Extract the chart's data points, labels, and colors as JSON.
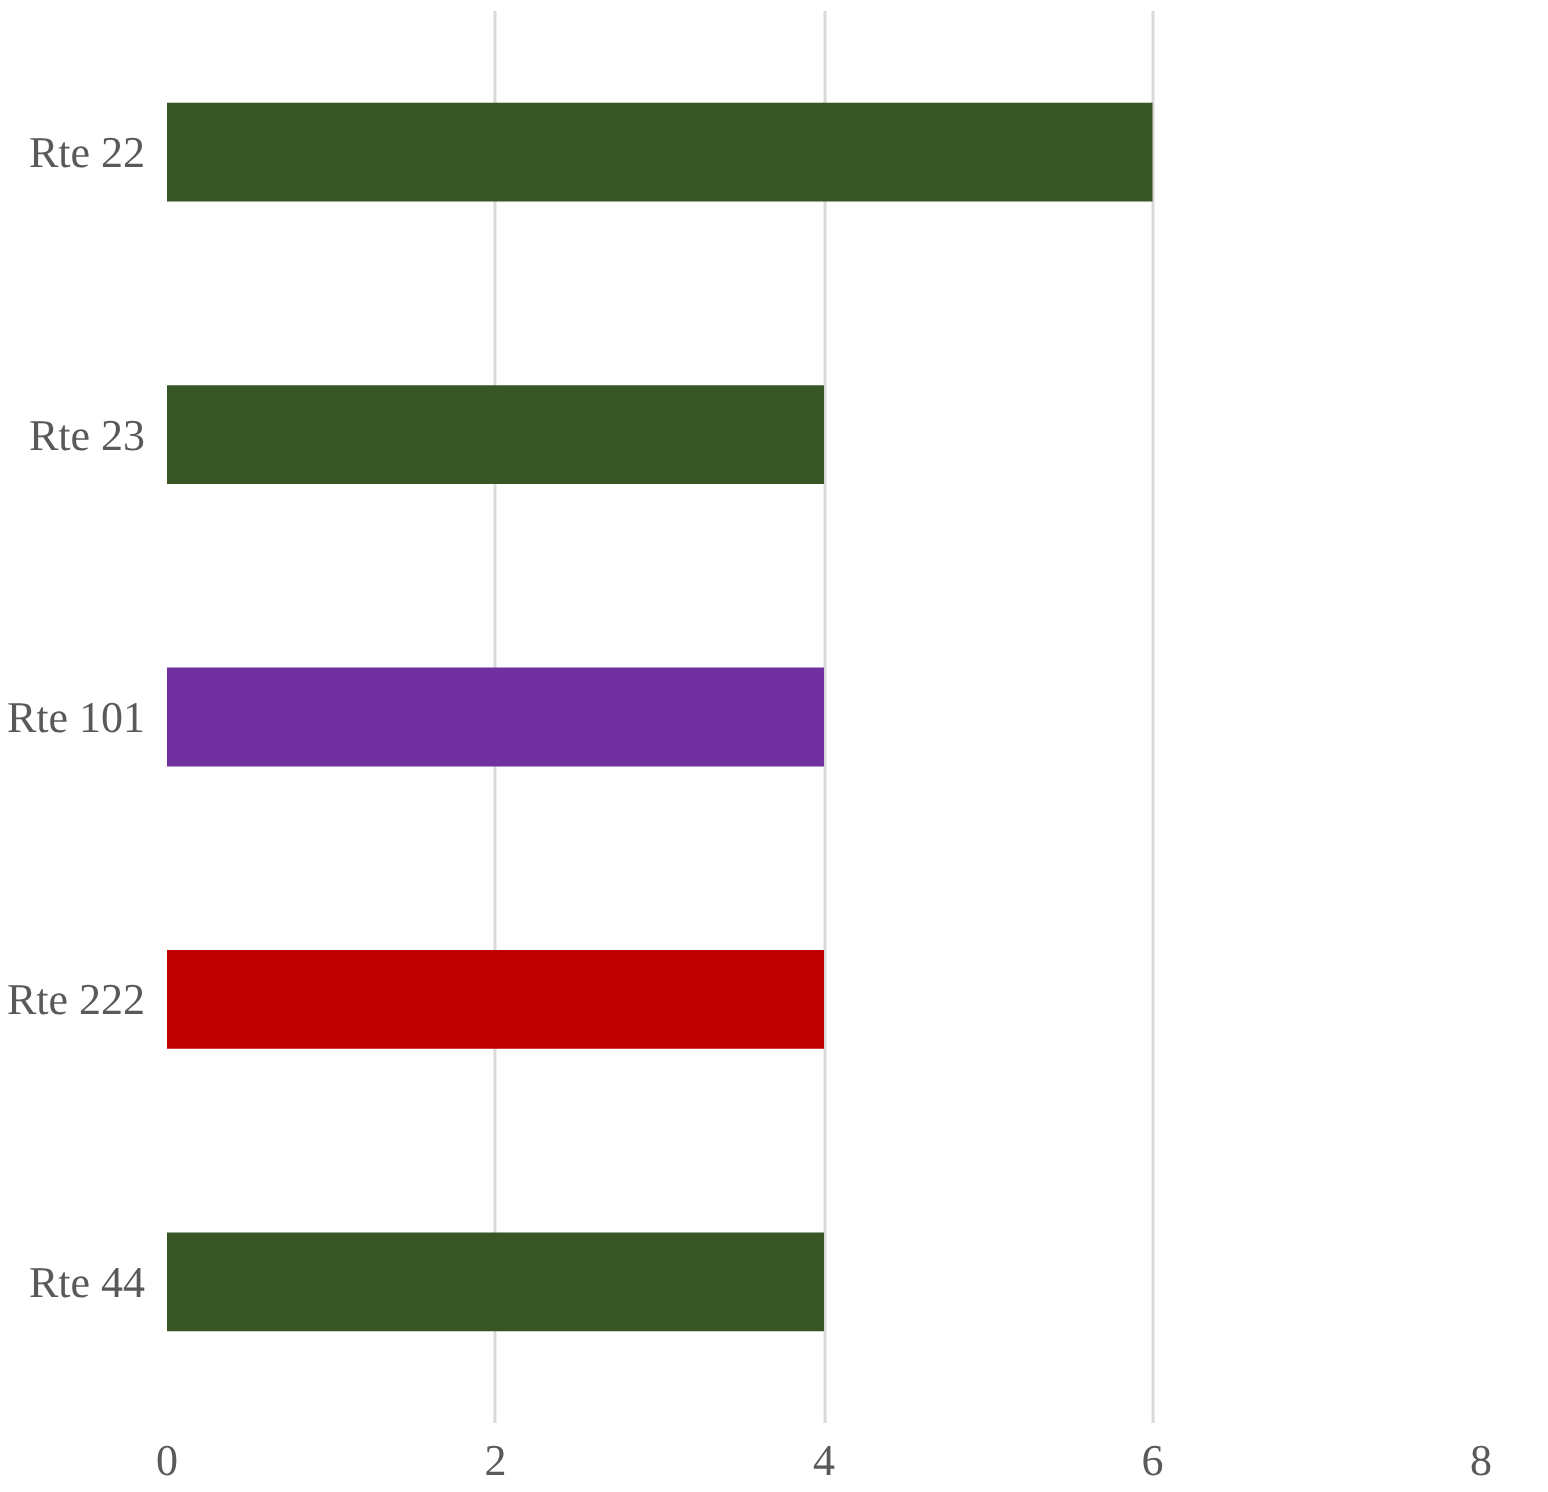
{
  "chart_data": {
    "type": "bar",
    "orientation": "horizontal",
    "categories": [
      "Rte 22",
      "Rte 23",
      "Rte 101",
      "Rte 222",
      "Rte 44"
    ],
    "values": [
      6,
      4,
      4,
      4,
      4
    ],
    "colors": [
      "#375623",
      "#375623",
      "#7030a0",
      "#c00000",
      "#375623"
    ],
    "xlim": [
      0,
      8
    ],
    "xticks": [
      0,
      2,
      4,
      6,
      8
    ],
    "grid": "x"
  }
}
